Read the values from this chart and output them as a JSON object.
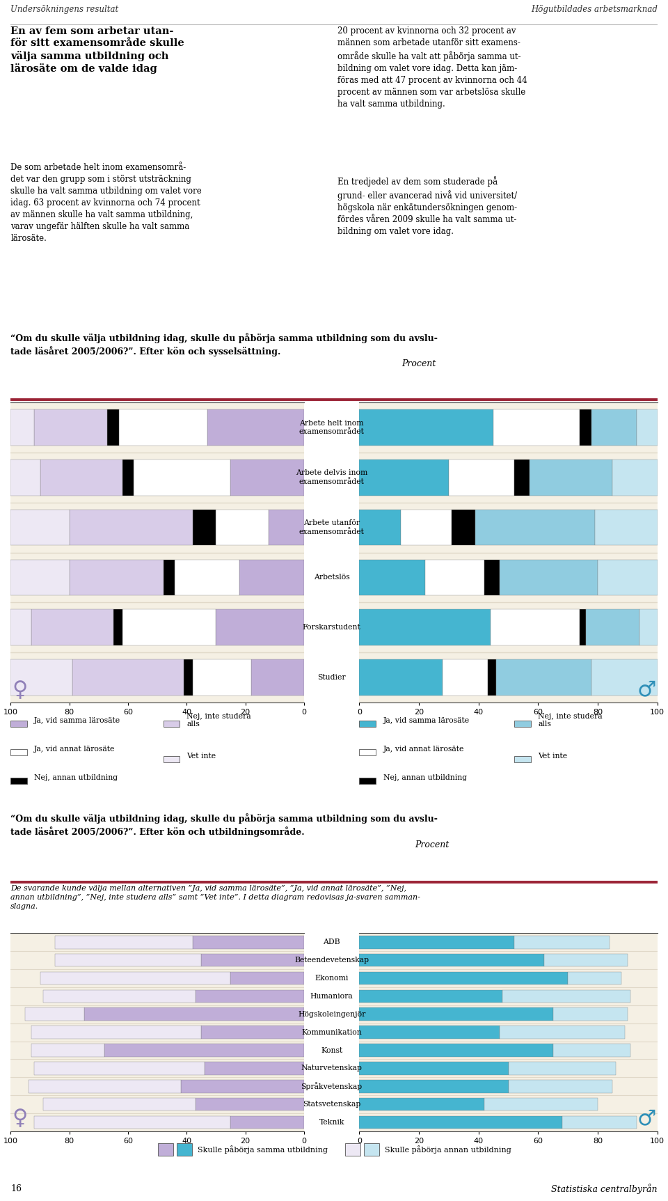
{
  "header_left": "Undersökningens resultat",
  "header_right": "Högutbildades arbetsmarknad",
  "chart1_categories": [
    "Arbete helt inom\nexamensområdet",
    "Arbete delvis inom\nexamensområdet",
    "Arbete utanför\nexamensområdet",
    "Arbetslös",
    "Forskarstudent",
    "Studier"
  ],
  "chart1_w_data": [
    [
      33,
      30,
      4,
      25,
      8
    ],
    [
      25,
      33,
      4,
      28,
      10
    ],
    [
      12,
      18,
      8,
      42,
      20
    ],
    [
      22,
      22,
      4,
      32,
      20
    ],
    [
      30,
      32,
      3,
      28,
      7
    ],
    [
      18,
      20,
      3,
      38,
      21
    ]
  ],
  "chart1_m_data": [
    [
      45,
      29,
      4,
      15,
      7
    ],
    [
      30,
      22,
      5,
      28,
      15
    ],
    [
      14,
      17,
      8,
      40,
      21
    ],
    [
      22,
      20,
      5,
      33,
      20
    ],
    [
      44,
      30,
      2,
      18,
      6
    ],
    [
      28,
      15,
      3,
      32,
      22
    ]
  ],
  "chart1_w_colors": [
    "#c0aed8",
    "#ffffff",
    "#000000",
    "#d8cce8",
    "#ede8f4"
  ],
  "chart1_m_colors": [
    "#45b5d0",
    "#ffffff",
    "#000000",
    "#90cce0",
    "#c5e5f0"
  ],
  "chart1_legend_labels": [
    "Ja, vid samma lärosäte",
    "Ja, vid annat lärosäte",
    "Nej, annan utbildning",
    "Nej, inte studera\nalls",
    "Vet inte"
  ],
  "chart2_categories": [
    "ADB",
    "Beteendevetenskap",
    "Ekonomi",
    "Humaniora",
    "Högskoleingenjör",
    "Kommunikation",
    "Konst",
    "Naturvetenskap",
    "Språkvetenskap",
    "Statsvetenskap",
    "Teknik"
  ],
  "chart2_w_same": [
    38,
    35,
    25,
    37,
    75,
    35,
    68,
    34,
    42,
    37,
    25
  ],
  "chart2_w_other": [
    47,
    50,
    65,
    52,
    20,
    58,
    25,
    58,
    52,
    52,
    67
  ],
  "chart2_m_same": [
    52,
    62,
    70,
    48,
    65,
    47,
    65,
    50,
    50,
    42,
    68
  ],
  "chart2_m_other": [
    32,
    28,
    18,
    43,
    25,
    42,
    26,
    36,
    35,
    38,
    25
  ],
  "chart2_w_colors": [
    "#c0aed8",
    "#ede8f4"
  ],
  "chart2_m_colors": [
    "#45b5d0",
    "#c5e5f0"
  ],
  "bar_bg": "#f5f0e4",
  "separator_color": "#9b2335",
  "grid_color": "#e0d8c8",
  "w_icon_color": "#9080b8",
  "m_icon_color": "#3090b8"
}
